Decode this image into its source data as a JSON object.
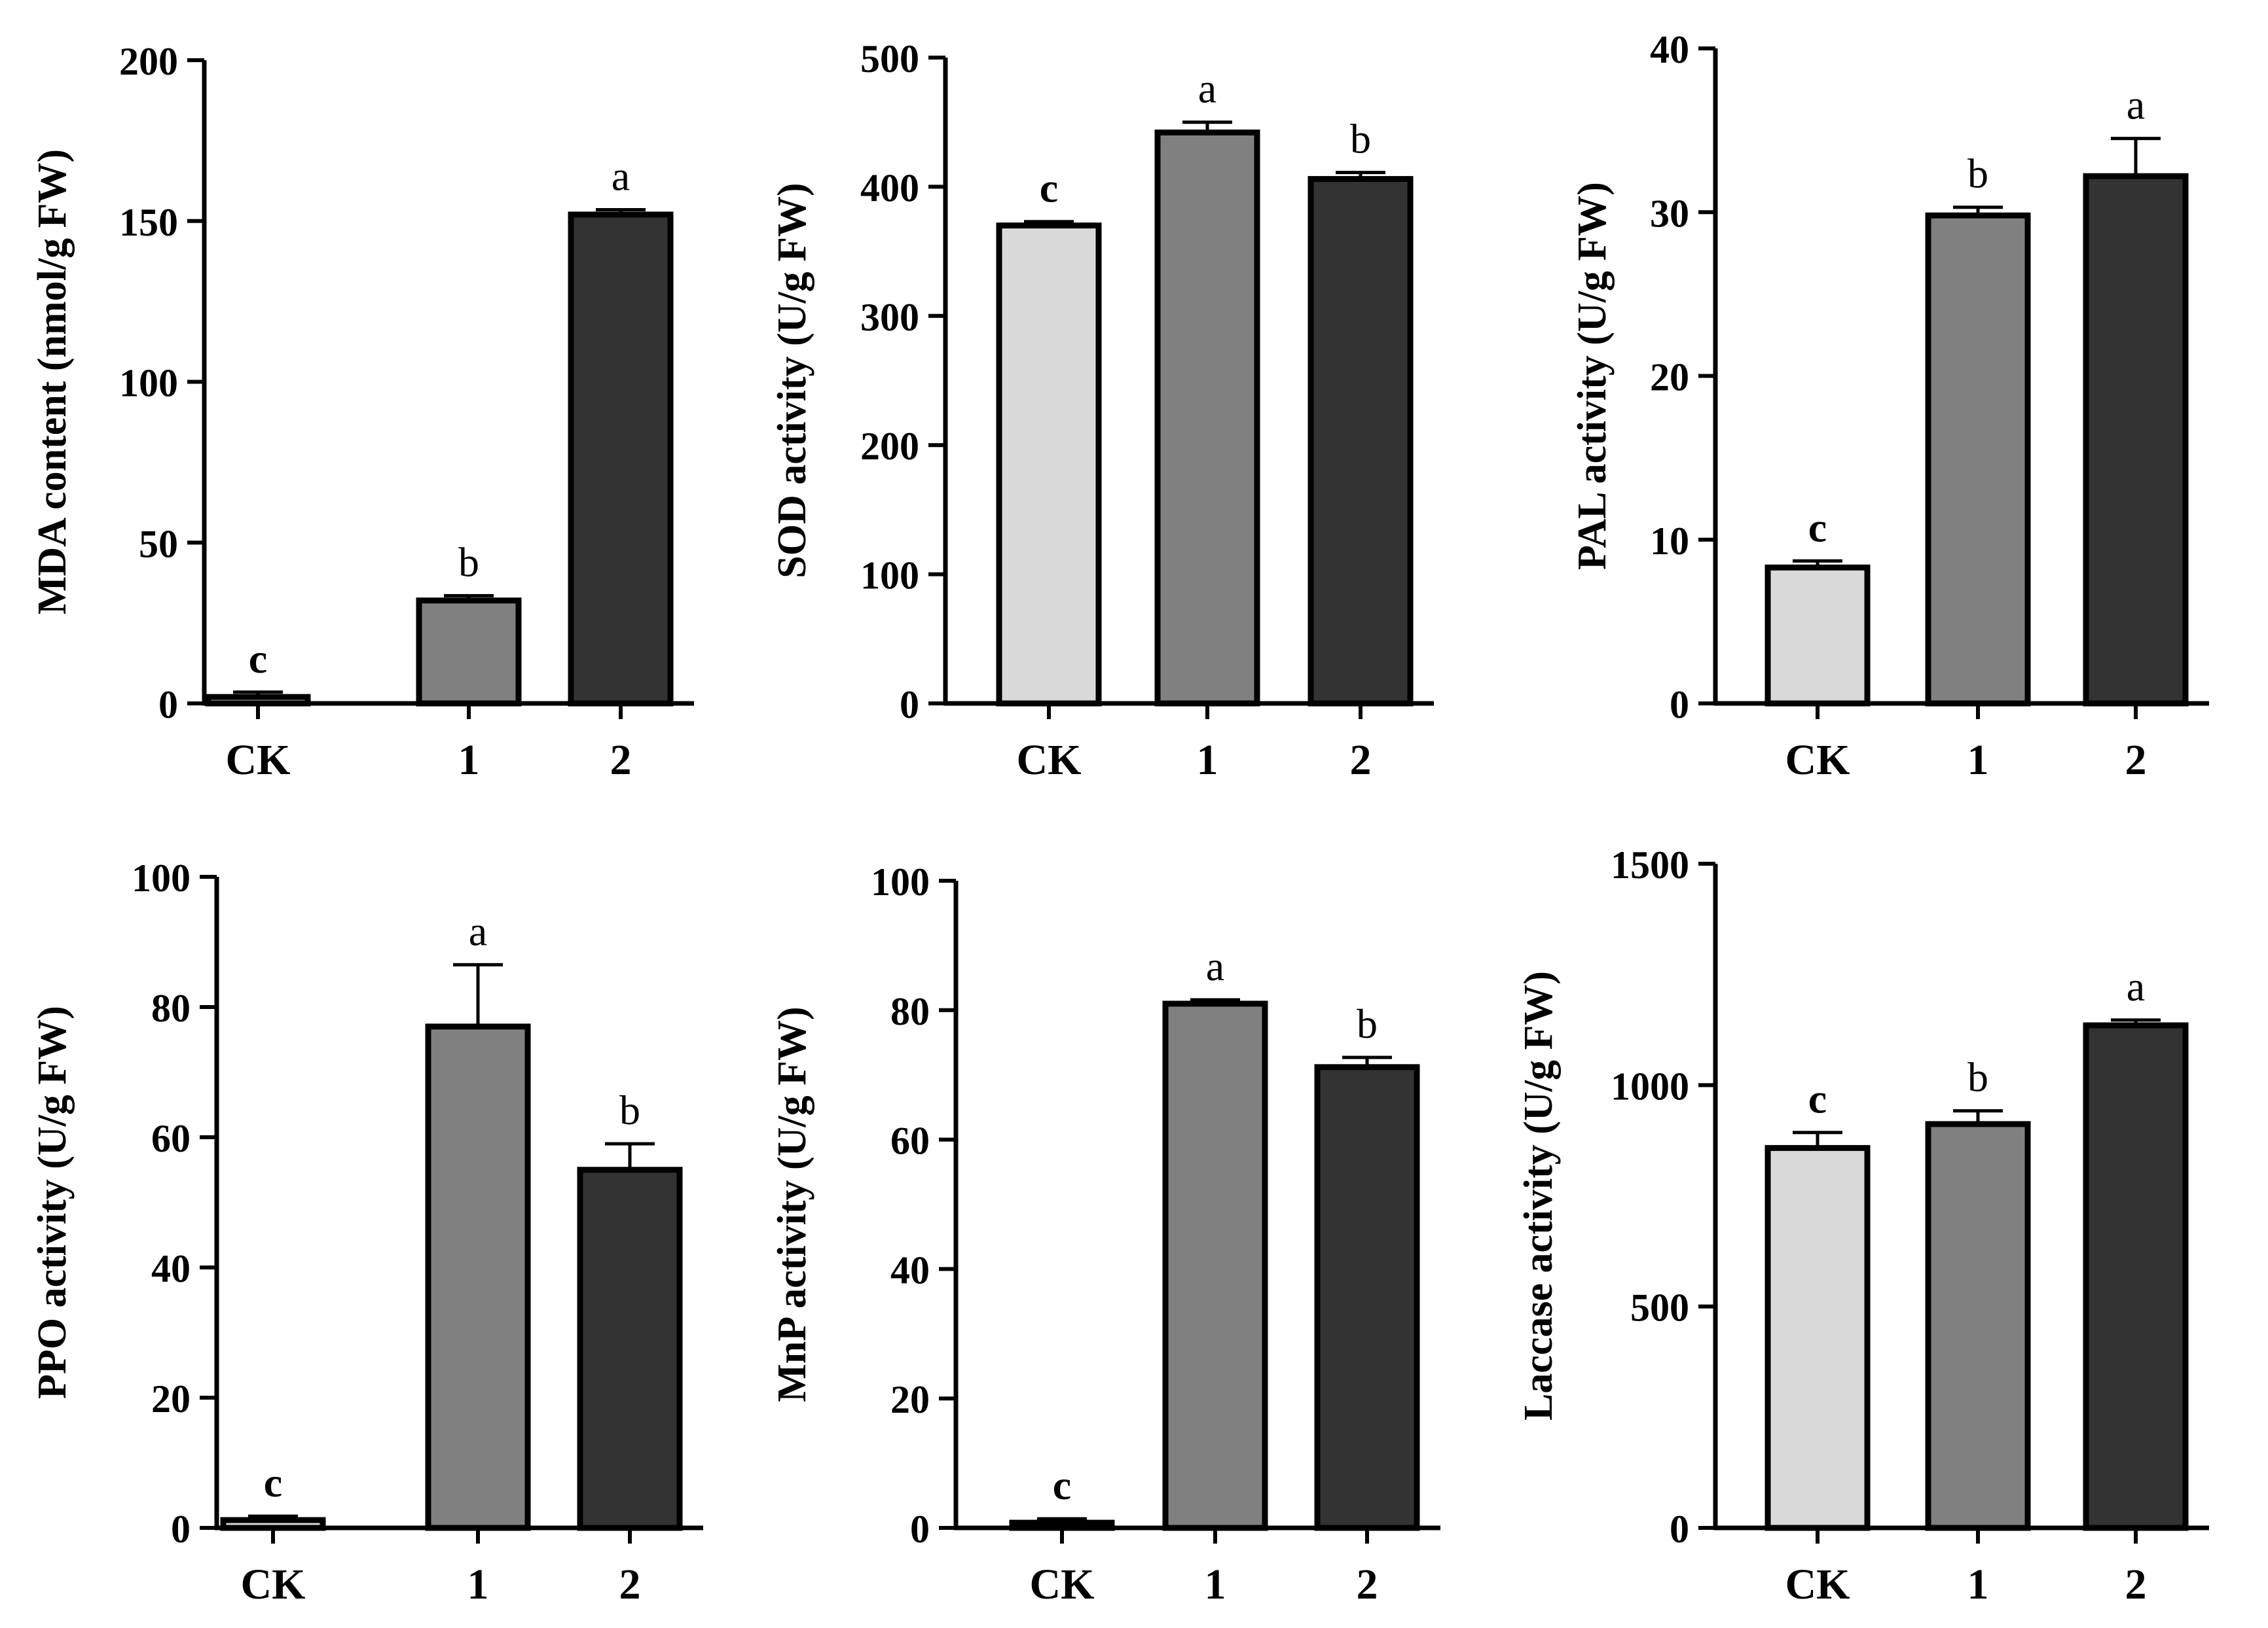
{
  "chart_data": [
    {
      "type": "bar",
      "panel": "top-left",
      "ylabel": "MDA content (nmol/g FW)",
      "categories": [
        "CK",
        "1",
        "2"
      ],
      "values": [
        2,
        32,
        152
      ],
      "errors": [
        1.5,
        1.5,
        1.5
      ],
      "significance": [
        "c",
        "b",
        "a"
      ],
      "ylim": [
        0,
        200
      ],
      "yticks": [
        0,
        50,
        100,
        150,
        200
      ],
      "ytick_labels": [
        "0",
        "50",
        "100",
        "150",
        "200"
      ],
      "bar_colors": [
        "#d9d9d9",
        "#808080",
        "#333333"
      ]
    },
    {
      "type": "bar",
      "panel": "top-center",
      "ylabel": "SOD activity (U/g FW)",
      "categories": [
        "CK",
        "1",
        "2"
      ],
      "values": [
        370,
        442,
        406
      ],
      "errors": [
        3,
        8,
        5
      ],
      "significance": [
        "c",
        "a",
        "b"
      ],
      "ylim": [
        0,
        500
      ],
      "yticks": [
        0,
        100,
        200,
        300,
        400,
        500
      ],
      "ytick_labels": [
        "0",
        "100",
        "200",
        "300",
        "400",
        "500"
      ],
      "bar_colors": [
        "#d9d9d9",
        "#808080",
        "#333333"
      ]
    },
    {
      "type": "bar",
      "panel": "top-right",
      "ylabel": "PAL activity (U/g FW)",
      "categories": [
        "CK",
        "1",
        "2"
      ],
      "values": [
        8.3,
        29.8,
        32.2
      ],
      "errors": [
        0.4,
        0.5,
        2.3
      ],
      "significance": [
        "c",
        "b",
        "a"
      ],
      "ylim": [
        0,
        40
      ],
      "yticks": [
        0,
        10,
        20,
        30,
        40
      ],
      "ytick_labels": [
        "0",
        "10",
        "20",
        "30",
        "40"
      ],
      "bar_colors": [
        "#d9d9d9",
        "#808080",
        "#333333"
      ]
    },
    {
      "type": "bar",
      "panel": "bottom-left",
      "ylabel": "PPO activity (U/g FW)",
      "categories": [
        "CK",
        "1",
        "2"
      ],
      "values": [
        1.2,
        77,
        55
      ],
      "errors": [
        0.6,
        9.5,
        4
      ],
      "significance": [
        "c",
        "a",
        "b"
      ],
      "ylim": [
        0,
        100
      ],
      "yticks": [
        0,
        20,
        40,
        60,
        80,
        100
      ],
      "ytick_labels": [
        "0",
        "20",
        "40",
        "60",
        "80",
        "100"
      ],
      "bar_colors": [
        "#d9d9d9",
        "#808080",
        "#333333"
      ]
    },
    {
      "type": "bar",
      "panel": "bottom-center",
      "ylabel": "MnP activity (U/g FW)",
      "categories": [
        "CK",
        "1",
        "2"
      ],
      "values": [
        0.8,
        81,
        71.2
      ],
      "errors": [
        0.6,
        0.6,
        1.5
      ],
      "significance": [
        "c",
        "a",
        "b"
      ],
      "ylim": [
        0,
        100
      ],
      "yticks": [
        0,
        20,
        40,
        60,
        80,
        100
      ],
      "ytick_labels": [
        "0",
        "20",
        "40",
        "60",
        "80",
        "100"
      ],
      "bar_colors": [
        "#d9d9d9",
        "#808080",
        "#333333"
      ]
    },
    {
      "type": "bar",
      "panel": "bottom-right",
      "ylabel": "Laccase activity  (U/g FW)",
      "categories": [
        "CK",
        "1",
        "2"
      ],
      "values": [
        858,
        912,
        1135
      ],
      "errors": [
        35,
        30,
        12
      ],
      "significance": [
        "c",
        "b",
        "a"
      ],
      "ylim": [
        0,
        1500
      ],
      "yticks": [
        0,
        500,
        1000,
        1500
      ],
      "ytick_labels": [
        "0",
        "500",
        "1000",
        "1500"
      ],
      "bar_colors": [
        "#d9d9d9",
        "#808080",
        "#333333"
      ]
    }
  ]
}
